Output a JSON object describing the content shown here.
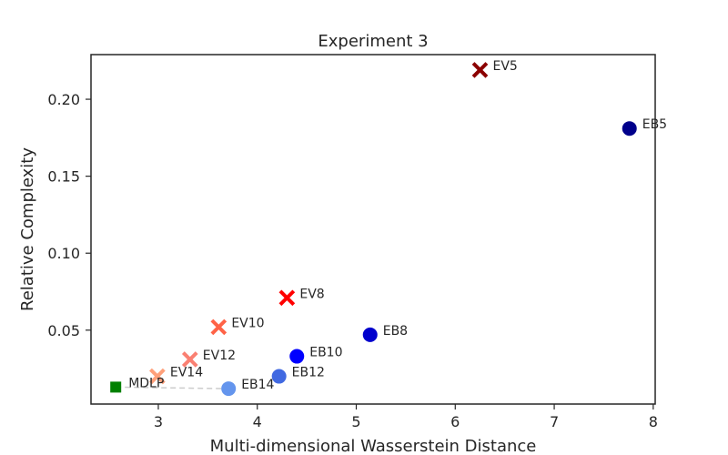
{
  "chart_data": {
    "type": "scatter",
    "title": "Experiment 3",
    "xlabel": "Multi-dimensional Wasserstein Distance",
    "ylabel": "Relative Complexity",
    "xlim": [
      2.32,
      8.02
    ],
    "ylim": [
      0.002,
      0.229
    ],
    "xticks": [
      3,
      4,
      5,
      6,
      7,
      8
    ],
    "yticks": [
      0.05,
      0.1,
      0.15,
      0.2
    ],
    "xtick_labels": [
      "3",
      "4",
      "5",
      "6",
      "7",
      "8"
    ],
    "ytick_labels": [
      "0.05",
      "0.10",
      "0.15",
      "0.20"
    ],
    "grid": false,
    "points": [
      {
        "label": "EV5",
        "x": 6.25,
        "y": 0.219,
        "marker": "x",
        "color": "#8b0000"
      },
      {
        "label": "EB5",
        "x": 7.76,
        "y": 0.181,
        "marker": "circle",
        "color": "#00008b"
      },
      {
        "label": "EV8",
        "x": 4.3,
        "y": 0.071,
        "marker": "x",
        "color": "#ff0000"
      },
      {
        "label": "EB8",
        "x": 5.14,
        "y": 0.047,
        "marker": "circle",
        "color": "#0000cd"
      },
      {
        "label": "EV10",
        "x": 3.61,
        "y": 0.052,
        "marker": "x",
        "color": "#ff6347"
      },
      {
        "label": "EB10",
        "x": 4.4,
        "y": 0.033,
        "marker": "circle",
        "color": "#0000ff"
      },
      {
        "label": "EV12",
        "x": 3.32,
        "y": 0.031,
        "marker": "x",
        "color": "#fa8072"
      },
      {
        "label": "EB12",
        "x": 4.22,
        "y": 0.02,
        "marker": "circle",
        "color": "#4169e1"
      },
      {
        "label": "EV14",
        "x": 2.99,
        "y": 0.02,
        "marker": "x",
        "color": "#ffa07a"
      },
      {
        "label": "EB14",
        "x": 3.71,
        "y": 0.012,
        "marker": "circle",
        "color": "#6495ed"
      },
      {
        "label": "MDLP",
        "x": 2.57,
        "y": 0.013,
        "marker": "square",
        "color": "#008000"
      }
    ],
    "connector": {
      "from": "MDLP",
      "to": "EB14",
      "style": "dashed",
      "color": "#cccccc"
    }
  }
}
